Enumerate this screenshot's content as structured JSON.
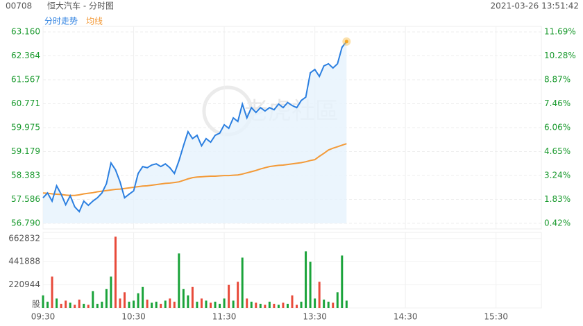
{
  "header": {
    "code": "00708",
    "name": "恒大汽车 - 分时图",
    "timestamp": "2021-03-26 13:51:42"
  },
  "watermark": "老虎社區",
  "chart_data": [
    {
      "type": "line",
      "xlim": [
        0,
        330
      ],
      "ylim": [
        56.79,
        63.16
      ],
      "yticks": [
        {
          "value": 63.16,
          "label": "63.160"
        },
        {
          "value": 62.364,
          "label": "62.364"
        },
        {
          "value": 61.567,
          "label": "61.567"
        },
        {
          "value": 60.771,
          "label": "60.771"
        },
        {
          "value": 59.975,
          "label": "59.975"
        },
        {
          "value": 59.179,
          "label": "59.179"
        },
        {
          "value": 58.383,
          "label": "58.383"
        },
        {
          "value": 57.586,
          "label": "57.586"
        },
        {
          "value": 56.79,
          "label": "56.790"
        }
      ],
      "y2lim": [
        0.42,
        11.69
      ],
      "y2ticks": [
        {
          "value": 11.69,
          "label": "11.69%"
        },
        {
          "value": 10.28,
          "label": "10.28%"
        },
        {
          "value": 8.87,
          "label": "8.87%"
        },
        {
          "value": 7.46,
          "label": "7.46%"
        },
        {
          "value": 6.06,
          "label": "6.06%"
        },
        {
          "value": 4.65,
          "label": "4.65%"
        },
        {
          "value": 3.24,
          "label": "3.24%"
        },
        {
          "value": 1.83,
          "label": "1.83%"
        },
        {
          "value": 0.42,
          "label": "0.42%"
        }
      ],
      "tick_color": "#1a9a2e",
      "grid": true,
      "x": [
        0,
        3,
        6,
        9,
        12,
        15,
        18,
        21,
        24,
        27,
        30,
        33,
        36,
        39,
        42,
        45,
        48,
        51,
        54,
        57,
        60,
        63,
        66,
        69,
        72,
        75,
        78,
        81,
        84,
        87,
        90,
        93,
        96,
        99,
        102,
        105,
        108,
        111,
        114,
        117,
        120,
        123,
        126,
        129,
        132,
        135,
        138,
        141,
        144,
        147,
        150,
        153,
        156,
        159,
        162,
        165,
        168,
        171,
        174,
        177,
        180,
        183,
        186,
        189,
        192,
        195,
        198,
        201
      ],
      "series": [
        {
          "name": "分时走势",
          "color": "#2b7fe0",
          "values": [
            57.64,
            57.8,
            57.53,
            58.04,
            57.76,
            57.41,
            57.71,
            57.34,
            57.18,
            57.53,
            57.39,
            57.53,
            57.64,
            57.8,
            58.11,
            58.8,
            58.57,
            58.17,
            57.64,
            57.76,
            57.87,
            58.45,
            58.68,
            58.64,
            58.73,
            58.77,
            58.68,
            58.77,
            58.64,
            58.45,
            58.87,
            59.37,
            59.84,
            59.61,
            59.72,
            59.37,
            59.61,
            59.49,
            59.72,
            59.79,
            60.07,
            59.95,
            60.3,
            60.18,
            60.76,
            60.3,
            60.64,
            60.48,
            60.64,
            60.53,
            60.64,
            60.57,
            60.76,
            60.64,
            60.81,
            60.71,
            60.64,
            60.88,
            60.99,
            61.8,
            61.91,
            61.68,
            62.03,
            62.1,
            61.96,
            62.1,
            62.65,
            62.84
          ]
        },
        {
          "name": "均线",
          "color": "#f39a38",
          "values": [
            57.8,
            57.79,
            57.77,
            57.76,
            57.75,
            57.73,
            57.72,
            57.72,
            57.74,
            57.77,
            57.79,
            57.81,
            57.84,
            57.86,
            57.88,
            57.9,
            57.92,
            57.93,
            57.95,
            57.97,
            57.99,
            58.01,
            58.03,
            58.04,
            58.06,
            58.08,
            58.1,
            58.12,
            58.13,
            58.15,
            58.17,
            58.22,
            58.27,
            58.31,
            58.33,
            58.34,
            58.35,
            58.36,
            58.36,
            58.37,
            58.38,
            58.38,
            58.39,
            58.4,
            58.43,
            58.47,
            58.51,
            58.55,
            58.6,
            58.64,
            58.68,
            58.7,
            58.72,
            58.73,
            58.75,
            58.77,
            58.79,
            58.81,
            58.84,
            58.88,
            58.91,
            59.02,
            59.12,
            59.23,
            59.29,
            59.34,
            59.39,
            59.44
          ]
        }
      ]
    },
    {
      "type": "bar",
      "xlim": [
        0,
        330
      ],
      "xticks": [
        {
          "value": 0,
          "label": "09:30"
        },
        {
          "value": 60,
          "label": "10:30"
        },
        {
          "value": 120,
          "label": "11:30"
        },
        {
          "value": 180,
          "label": "13:30"
        },
        {
          "value": 240,
          "label": "14:30"
        },
        {
          "value": 300,
          "label": "15:30"
        }
      ],
      "ylim": [
        0,
        721000
      ],
      "yticks": [
        {
          "value": 0,
          "label": "股"
        },
        220944,
        441888,
        662832
      ],
      "up_color": "#1aa33a",
      "down_color": "#e84a3a",
      "x": [
        0,
        3,
        6,
        9,
        12,
        15,
        18,
        21,
        24,
        27,
        30,
        33,
        36,
        39,
        42,
        45,
        48,
        51,
        54,
        57,
        60,
        63,
        66,
        69,
        72,
        75,
        78,
        81,
        84,
        87,
        90,
        93,
        96,
        99,
        102,
        105,
        108,
        111,
        114,
        117,
        120,
        123,
        126,
        129,
        132,
        135,
        138,
        141,
        144,
        147,
        150,
        153,
        156,
        159,
        162,
        165,
        168,
        171,
        174,
        177,
        180,
        183,
        186,
        189,
        192,
        195,
        198,
        201
      ],
      "values": [
        120000,
        60000,
        300000,
        90000,
        40000,
        70000,
        50000,
        30000,
        80000,
        40000,
        30000,
        160000,
        40000,
        60000,
        180000,
        300000,
        680000,
        90000,
        150000,
        60000,
        70000,
        140000,
        200000,
        80000,
        50000,
        60000,
        40000,
        70000,
        90000,
        60000,
        520000,
        180000,
        120000,
        200000,
        60000,
        90000,
        70000,
        50000,
        60000,
        40000,
        90000,
        220000,
        70000,
        250000,
        480000,
        90000,
        60000,
        50000,
        40000,
        30000,
        60000,
        40000,
        30000,
        50000,
        40000,
        120000,
        30000,
        60000,
        540000,
        440000,
        90000,
        250000,
        80000,
        60000,
        50000,
        150000,
        500000,
        70000
      ]
    }
  ]
}
